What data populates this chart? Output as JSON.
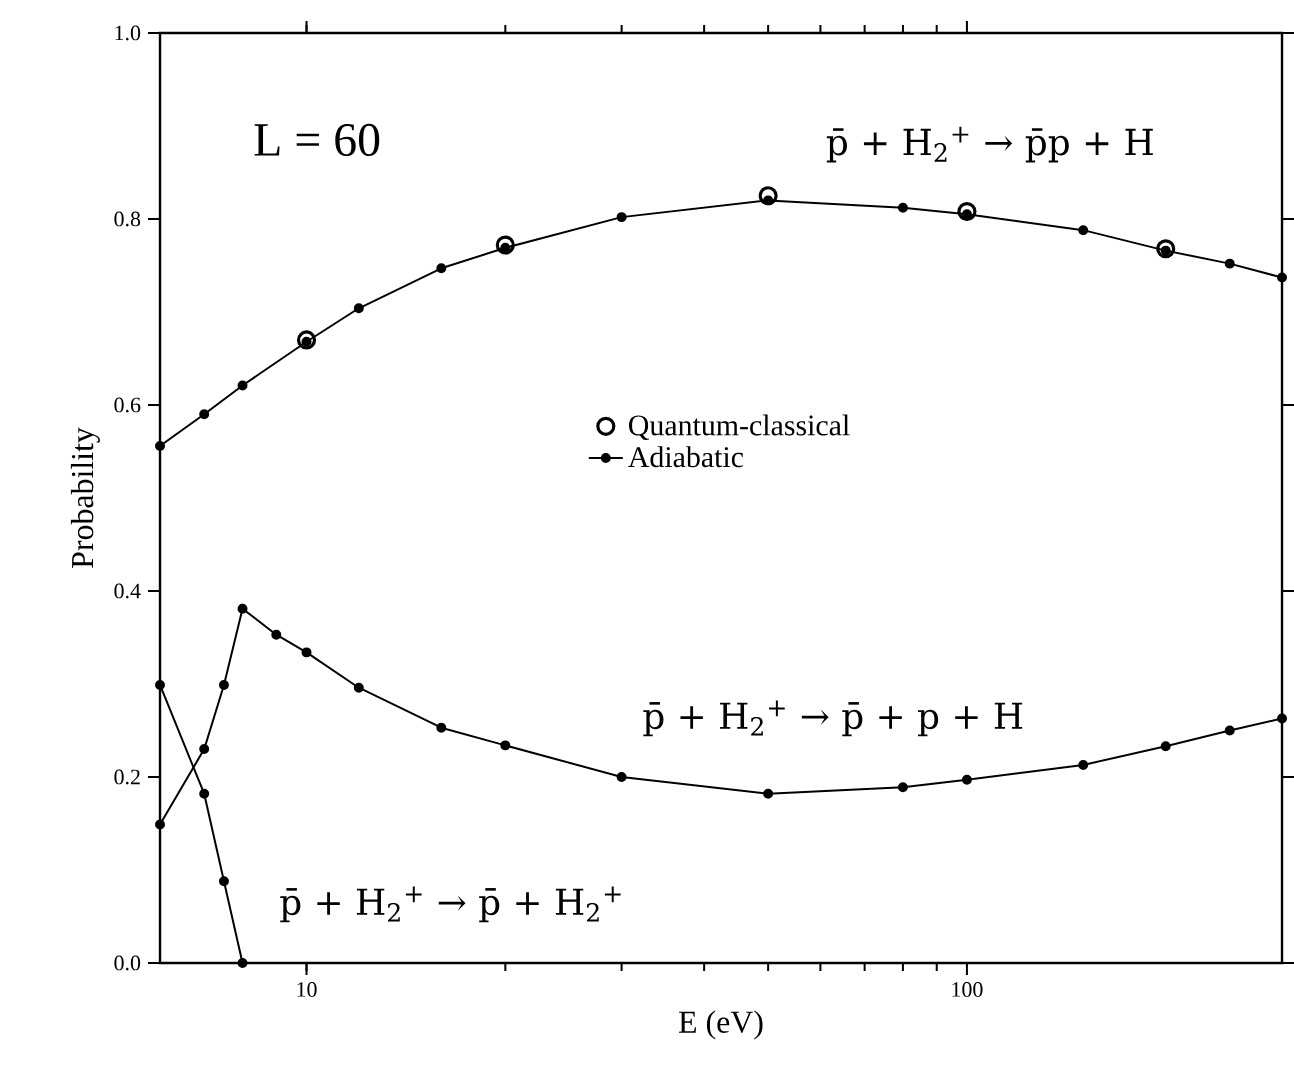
{
  "chart_data": {
    "type": "line",
    "xlabel": "E (eV)",
    "ylabel": "Probability",
    "log": "x",
    "xlim": [
      6,
      300
    ],
    "ylim": [
      0,
      1.0
    ],
    "xticks": [
      10,
      100
    ],
    "yticks": [
      {
        "value": 0,
        "label": "0.0"
      },
      {
        "value": 0.2,
        "label": "0.2"
      },
      {
        "value": 0.4,
        "label": "0.4"
      },
      {
        "value": 0.6,
        "label": "0.6"
      },
      {
        "value": 0.8,
        "label": "0.8"
      },
      {
        "value": 1.0,
        "label": "1.0"
      }
    ],
    "grid": false,
    "legend": "center",
    "marker": "circle",
    "line_style": "solid",
    "series": [
      {
        "name": "Quantum-classical",
        "type": "scatter",
        "color": "#000000",
        "x": [
          10,
          20,
          50,
          100,
          200
        ],
        "values": [
          0.67,
          0.772,
          0.825,
          0.808,
          0.768
        ]
      },
      {
        "name": "Adiabatic",
        "color": "#000000",
        "x": [
          6,
          7,
          8,
          10,
          12,
          16,
          20,
          30,
          50,
          80,
          100,
          150,
          200,
          250,
          300
        ],
        "values": [
          0.556,
          0.59,
          0.621,
          0.668,
          0.704,
          0.747,
          0.769,
          0.802,
          0.82,
          0.812,
          0.805,
          0.788,
          0.766,
          0.752,
          0.737
        ]
      },
      {
        "color": "#000000",
        "x": [
          6,
          7,
          7.5,
          8,
          9,
          10,
          12,
          16,
          20,
          30,
          50,
          80,
          100,
          150,
          200,
          250,
          300
        ],
        "values": [
          0.149,
          0.23,
          0.299,
          0.381,
          0.353,
          0.334,
          0.296,
          0.253,
          0.234,
          0.2,
          0.182,
          0.189,
          0.197,
          0.213,
          0.233,
          0.25,
          0.263
        ]
      },
      {
        "color": "#000000",
        "x": [
          6,
          7,
          7.5,
          8
        ],
        "values": [
          0.299,
          0.182,
          0.088,
          0.0
        ]
      }
    ],
    "annotations": [
      "L = 60",
      "p̄ + H$_{2}$$^{+}$ → p̄p + H",
      "p̄ + H$_{2}$$^{+}$ → p̄ + p + H",
      "p̄ + H$_{2}$$^{+}$ → p̄ + H$_{2}$$^{+}$"
    ]
  }
}
